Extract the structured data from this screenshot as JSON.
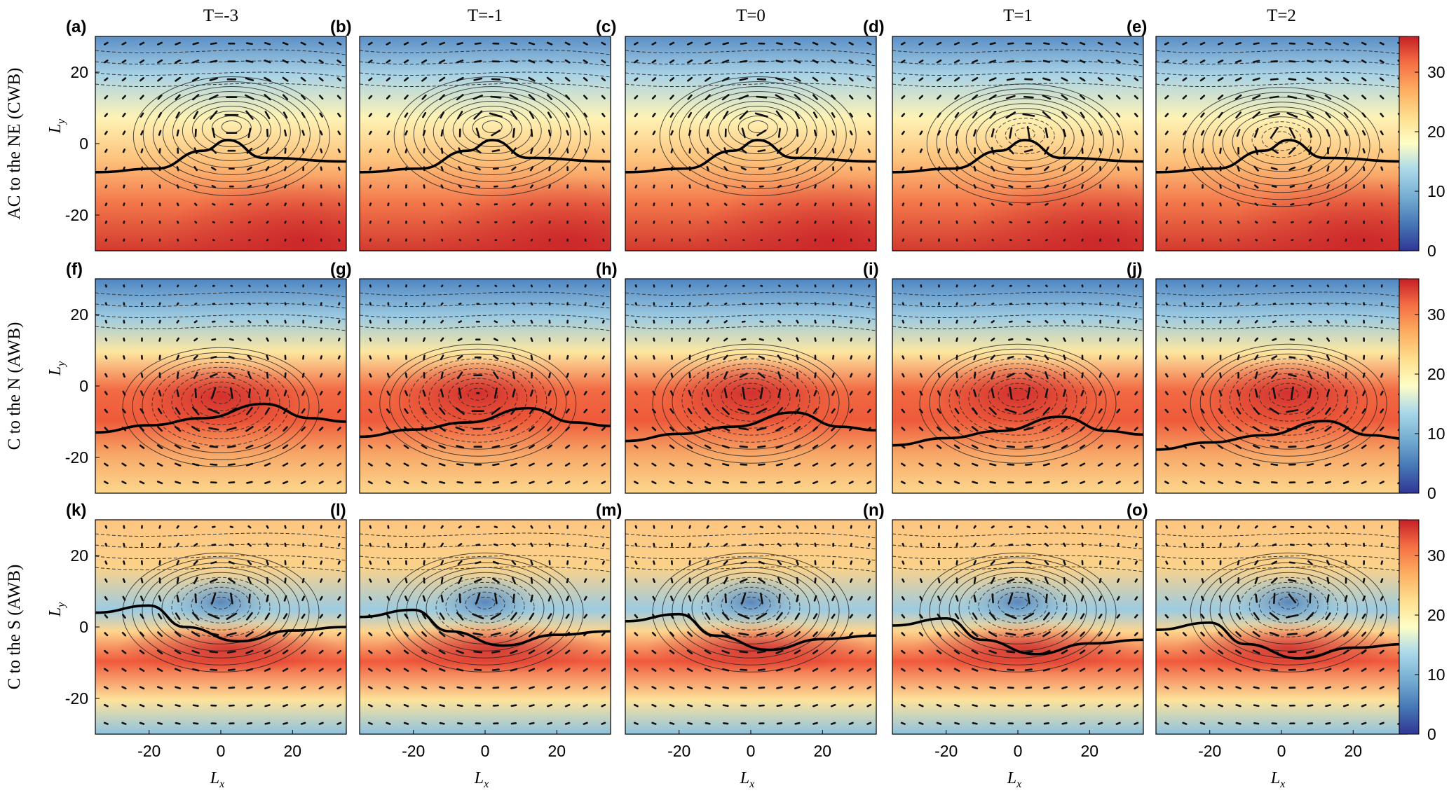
{
  "chart_data": {
    "type": "heatmap",
    "colormap": "RdYlBu_r",
    "color_range": [
      0,
      36
    ],
    "colorbar_ticks": [
      0,
      10,
      20,
      30
    ],
    "x_ticks": [
      -20,
      0,
      20
    ],
    "y_ticks": [
      -20,
      0,
      20
    ],
    "xlim": [
      -35,
      35
    ],
    "ylim": [
      -30,
      30
    ],
    "xlabel": "L",
    "xlabel_sub": "x",
    "ylabel": "L",
    "ylabel_sub": "y",
    "overlays": [
      "contours (solid positive, dashed negative)",
      "wind vectors",
      "thick black contour"
    ],
    "columns": [
      {
        "title": "T=-3",
        "time": -3
      },
      {
        "title": "T=-1",
        "time": -1
      },
      {
        "title": "T=0",
        "time": 0
      },
      {
        "title": "T=1",
        "time": 1
      },
      {
        "title": "T=2",
        "time": 2
      }
    ],
    "rows": [
      {
        "label": "AC to the NE (CWB)",
        "panels": [
          "(a)",
          "(b)",
          "(c)",
          "(d)",
          "(e)"
        ]
      },
      {
        "label": "C to the N (AWB)",
        "panels": [
          "(f)",
          "(g)",
          "(h)",
          "(i)",
          "(j)"
        ]
      },
      {
        "label": "C to the S (AWB)",
        "panels": [
          "(k)",
          "(l)",
          "(m)",
          "(n)",
          "(o)"
        ]
      }
    ]
  }
}
